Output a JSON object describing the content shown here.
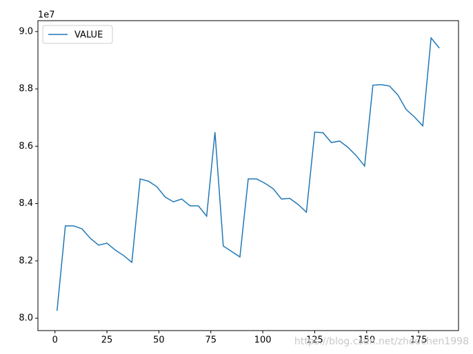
{
  "chart_data": {
    "type": "line",
    "offset_label": "1e7",
    "x": [
      1,
      5,
      9,
      13,
      17,
      21,
      25,
      29,
      33,
      37,
      41,
      45,
      49,
      53,
      57,
      61,
      65,
      69,
      73,
      77,
      81,
      85,
      89,
      93,
      97,
      101,
      105,
      109,
      113,
      117,
      121,
      125,
      129,
      133,
      137,
      141,
      145,
      149,
      153,
      157,
      161,
      165,
      169,
      173,
      177,
      181,
      185
    ],
    "series": [
      {
        "name": "VALUE",
        "color": "#1f77b4",
        "values": [
          8.026,
          8.322,
          8.322,
          8.312,
          8.279,
          8.255,
          8.262,
          8.238,
          8.219,
          8.195,
          8.486,
          8.478,
          8.459,
          8.423,
          8.406,
          8.416,
          8.392,
          8.392,
          8.356,
          8.649,
          8.252,
          8.233,
          8.214,
          8.486,
          8.486,
          8.471,
          8.452,
          8.416,
          8.418,
          8.397,
          8.37,
          8.649,
          8.647,
          8.613,
          8.618,
          8.596,
          8.567,
          8.531,
          8.813,
          8.815,
          8.81,
          8.779,
          8.728,
          8.702,
          8.671,
          8.978,
          8.942
        ]
      }
    ],
    "xlim": [
      -8.2,
      194.2
    ],
    "xticks": [
      0,
      25,
      50,
      75,
      100,
      125,
      150,
      175
    ],
    "ylim": [
      7.957,
      9.038
    ],
    "yticks": [
      {
        "value": 8,
        "label": "8.0"
      },
      8.2,
      8.4,
      8.6,
      8.8,
      {
        "value": 9,
        "label": "9.0"
      }
    ],
    "legend": "upper left",
    "watermark": "https://blog.csdn.net/zhouchen1998"
  }
}
